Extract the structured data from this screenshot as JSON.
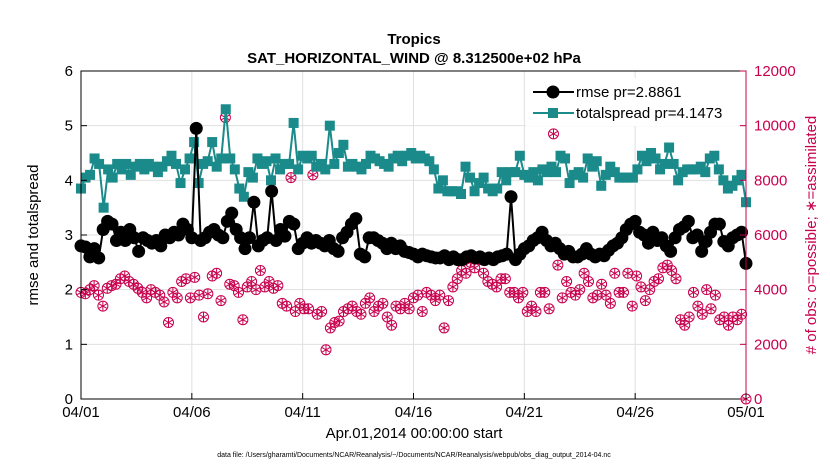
{
  "chart_data": {
    "type": "line",
    "title": "Tropics",
    "subtitle": "SAT_HORIZONTAL_WIND @ 8.312500e+02 hPa",
    "xlabel": "Apr.01,2014 00:00:00 start",
    "ylabel_left": "rmse and totalspread",
    "ylabel_right": "# of obs: o=possible; ∗=assimilated",
    "footnote": "data file: /Users/gharamti/Documents/NCAR/Reanalysis/~/Documents/NCAR/Reanalysis/webpub/obs_diag_output_2014-04.nc",
    "x_ticks": [
      "04/01",
      "04/06",
      "04/11",
      "04/16",
      "04/21",
      "04/26",
      "05/01"
    ],
    "x_range_days": [
      0,
      30
    ],
    "ylim_left": [
      0,
      6
    ],
    "yticks_left": [
      "0",
      "1",
      "2",
      "3",
      "4",
      "5",
      "6"
    ],
    "ylim_right": [
      0,
      12000
    ],
    "yticks_right": [
      "0",
      "2000",
      "4000",
      "6000",
      "8000",
      "10000",
      "12000"
    ],
    "legend": {
      "position": "top-right",
      "entries": [
        "rmse pr=2.8861",
        "totalspread pr=4.1473"
      ]
    },
    "series": [
      {
        "name": "rmse",
        "color": "#000000",
        "axis": "left",
        "values": [
          2.8,
          2.78,
          2.6,
          2.75,
          2.58,
          3.1,
          3.25,
          3.2,
          2.9,
          3.05,
          2.9,
          3.1,
          2.95,
          2.7,
          2.95,
          2.9,
          2.85,
          2.9,
          2.8,
          3.0,
          2.95,
          3.05,
          3.0,
          3.2,
          3.1,
          2.95,
          4.95,
          2.9,
          2.95,
          3.05,
          3.1,
          3.0,
          2.95,
          3.25,
          3.4,
          3.1,
          2.95,
          2.75,
          2.95,
          3.6,
          2.8,
          2.9,
          2.95,
          3.8,
          2.9,
          3.1,
          2.98,
          3.25,
          3.2,
          2.75,
          2.85,
          2.95,
          2.85,
          2.9,
          2.85,
          2.8,
          2.9,
          2.75,
          2.7,
          2.95,
          3.05,
          3.2,
          3.3,
          2.65,
          2.6,
          2.95,
          2.95,
          2.9,
          2.85,
          2.75,
          2.85,
          2.75,
          2.8,
          2.7,
          2.68,
          2.65,
          2.6,
          2.65,
          2.62,
          2.6,
          2.58,
          2.58,
          2.62,
          2.55,
          2.6,
          2.55,
          2.55,
          2.6,
          2.62,
          2.58,
          2.6,
          2.55,
          2.58,
          2.55,
          2.6,
          2.62,
          2.65,
          3.7,
          2.55,
          2.65,
          2.75,
          2.8,
          2.9,
          2.95,
          3.05,
          2.9,
          2.8,
          2.85,
          2.75,
          2.65,
          2.7,
          2.6,
          2.6,
          2.65,
          2.75,
          2.65,
          2.6,
          2.65,
          2.62,
          2.72,
          2.8,
          2.85,
          2.95,
          3.1,
          3.2,
          3.25,
          3.05,
          3.0,
          2.85,
          3.05,
          2.9,
          2.95,
          2.8,
          2.7,
          2.95,
          3.1,
          3.15,
          3.25,
          2.95,
          3.0,
          2.7,
          2.88,
          3.05,
          3.2,
          3.2,
          2.88,
          2.8,
          2.95,
          3.0,
          3.05,
          2.48
        ]
      },
      {
        "name": "totalspread",
        "color": "#1a8a8a",
        "axis": "left",
        "values": [
          3.85,
          4.05,
          4.1,
          4.4,
          4.3,
          3.5,
          4.2,
          4.05,
          4.3,
          4.2,
          4.3,
          4.1,
          4.25,
          4.3,
          4.2,
          4.3,
          4.25,
          4.15,
          4.25,
          4.35,
          4.45,
          4.3,
          3.95,
          4.2,
          4.4,
          4.7,
          3.95,
          4.3,
          4.35,
          4.7,
          4.25,
          4.4,
          5.3,
          4.4,
          4.2,
          3.85,
          3.7,
          4.15,
          4.05,
          4.4,
          4.3,
          4.35,
          4.0,
          4.4,
          4.2,
          4.3,
          4.3,
          5.05,
          4.2,
          4.45,
          4.4,
          4.45,
          4.25,
          4.3,
          4.2,
          5.0,
          4.3,
          4.5,
          4.65,
          4.25,
          4.3,
          4.25,
          4.2,
          4.3,
          4.45,
          4.4,
          4.35,
          4.3,
          4.25,
          4.4,
          4.45,
          4.35,
          4.45,
          4.5,
          4.4,
          4.45,
          4.4,
          4.35,
          4.2,
          3.85,
          4.0,
          3.8,
          3.8,
          3.8,
          3.75,
          4.25,
          4.05,
          3.8,
          3.95,
          4.05,
          3.85,
          3.8,
          3.85,
          4.15,
          4.0,
          4.15,
          4.15,
          4.45,
          4.1,
          4.05,
          4.15,
          4.0,
          4.2,
          4.15,
          4.25,
          4.15,
          4.45,
          4.4,
          3.95,
          4.1,
          4.15,
          4.05,
          4.4,
          4.25,
          4.35,
          3.9,
          4.1,
          4.25,
          4.15,
          4.05,
          4.05,
          4.05,
          4.05,
          4.2,
          4.45,
          4.35,
          4.5,
          4.4,
          4.2,
          4.3,
          4.6,
          4.3,
          4.0,
          4.15,
          4.2,
          4.2,
          4.2,
          4.25,
          4.15,
          4.4,
          4.45,
          4.2,
          4.0,
          3.85,
          3.9,
          4.0,
          4.1,
          3.6
        ]
      },
      {
        "name": "possible",
        "color": "#c8004e",
        "axis": "right",
        "marker": "o",
        "values": [
          3900,
          3850,
          4000,
          4150,
          3800,
          3400,
          4050,
          4150,
          4200,
          4400,
          4500,
          4300,
          4200,
          4050,
          3900,
          3700,
          4000,
          3900,
          3800,
          3550,
          2800,
          3900,
          3700,
          4300,
          4400,
          3700,
          4450,
          3800,
          3000,
          3850,
          4500,
          4600,
          3600,
          10300,
          4200,
          4150,
          3900,
          2900,
          4100,
          4300,
          4000,
          4700,
          4100,
          4300,
          4050,
          4150,
          3500,
          3400,
          8100,
          3200,
          3500,
          3300,
          3300,
          8200,
          3100,
          3200,
          1800,
          2600,
          2800,
          2850,
          3200,
          3300,
          3400,
          3200,
          3100,
          3500,
          3700,
          3200,
          3400,
          3500,
          3000,
          2700,
          3400,
          3300,
          3500,
          3300,
          3700,
          3800,
          3200,
          3900,
          3800,
          3600,
          3800,
          2600,
          3600,
          4100,
          4400,
          4700,
          4600,
          5000,
          4800,
          5100,
          4600,
          4300,
          4200,
          4100,
          4400,
          4400,
          3900,
          3900,
          3700,
          3900,
          3200,
          3400,
          3200,
          3900,
          3900,
          3300,
          9700,
          4900,
          3700,
          4300,
          3900,
          3800,
          4000,
          4600,
          4300,
          3700,
          3800,
          4200,
          3800,
          3500,
          4600,
          3900,
          3900,
          4600,
          3400,
          4500,
          4100,
          3600,
          4000,
          4300,
          4400,
          4800,
          4900,
          4700,
          4400,
          2900,
          2700,
          3000,
          3900,
          3400,
          3100,
          4000,
          3300,
          3800,
          2900,
          3000,
          2700,
          3000,
          2900,
          3100,
          0
        ]
      }
    ]
  }
}
